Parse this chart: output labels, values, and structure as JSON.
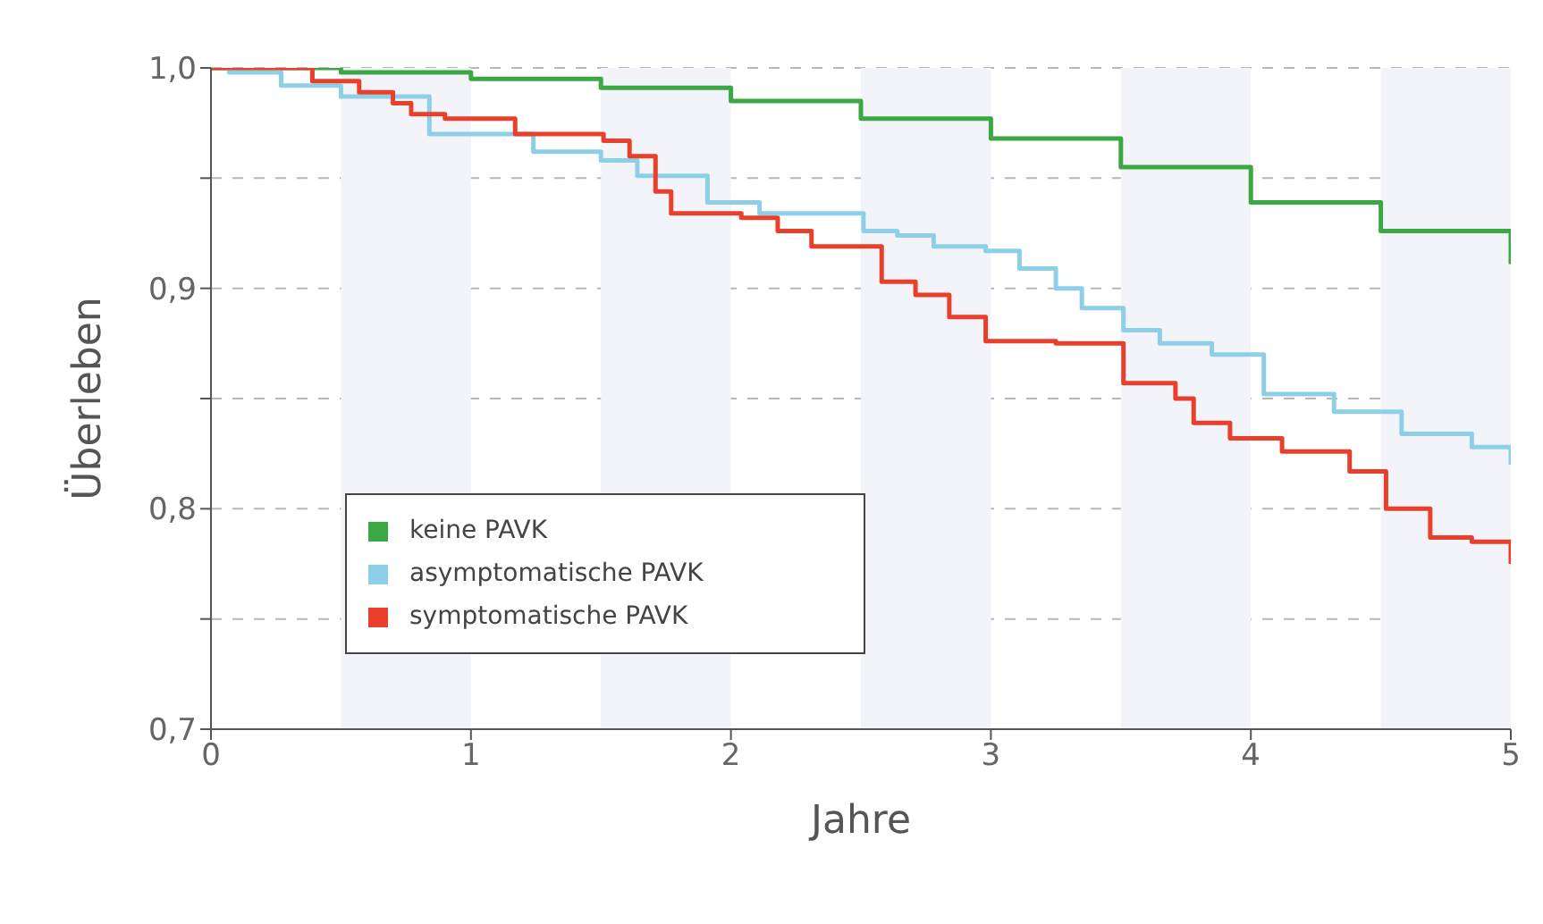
{
  "chart_data": {
    "type": "step",
    "xlabel": "Jahre",
    "ylabel": "Überleben",
    "xlim": [
      0,
      5
    ],
    "ylim": [
      0.7,
      1.0
    ],
    "xticks": [
      0,
      1,
      2,
      3,
      4,
      5
    ],
    "yticks": [
      {
        "value": 0.7,
        "label": "0,7"
      },
      {
        "value": 0.75,
        "label": null
      },
      {
        "value": 0.8,
        "label": "0,8"
      },
      {
        "value": 0.85,
        "label": null
      },
      {
        "value": 0.9,
        "label": "0,9"
      },
      {
        "value": 0.95,
        "label": null
      },
      {
        "value": 1.0,
        "label": "1,0"
      }
    ],
    "grid": "y",
    "legend": "bottom left",
    "line_style": "solid",
    "marker": "none",
    "bands": [
      {
        "axis": "x",
        "from": 0.5,
        "to": 1,
        "color": "#f2f4fa"
      },
      {
        "axis": "x",
        "from": 1.5,
        "to": 2,
        "color": "#f2f4fa"
      },
      {
        "axis": "x",
        "from": 2.5,
        "to": 3,
        "color": "#f2f4fa"
      },
      {
        "axis": "x",
        "from": 3.5,
        "to": 4,
        "color": "#f2f4fa"
      },
      {
        "axis": "x",
        "from": 4.5,
        "to": 5,
        "color": "#f2f4fa"
      }
    ],
    "series": [
      {
        "name": "keine PAVK",
        "color": "#3aa843",
        "x": [
          0,
          0.5,
          1,
          1.5,
          2,
          2.5,
          3,
          3.5,
          4,
          4.5,
          5
        ],
        "values": [
          1.0,
          0.998,
          0.995,
          0.991,
          0.985,
          0.977,
          0.968,
          0.955,
          0.939,
          0.926,
          0.911
        ]
      },
      {
        "name": "asymptomatische PAVK",
        "color": "#8ecfe8",
        "x": [
          0,
          0.07,
          0.27,
          0.5,
          0.84,
          1.24,
          1.5,
          1.64,
          1.81,
          1.91,
          2.11,
          2.44,
          2.51,
          2.64,
          2.78,
          2.98,
          3.11,
          3.25,
          3.35,
          3.51,
          3.65,
          3.85,
          4.05,
          4.32,
          4.58,
          4.85,
          5
        ],
        "values": [
          1.0,
          0.998,
          0.992,
          0.987,
          0.97,
          0.962,
          0.958,
          0.951,
          0.951,
          0.939,
          0.934,
          0.934,
          0.926,
          0.924,
          0.919,
          0.917,
          0.909,
          0.9,
          0.891,
          0.881,
          0.875,
          0.87,
          0.852,
          0.844,
          0.834,
          0.828,
          0.82
        ]
      },
      {
        "name": "symptomatische PAVK",
        "color": "#e8402a",
        "x": [
          0,
          0.39,
          0.57,
          0.7,
          0.77,
          0.9,
          1.17,
          1.51,
          1.61,
          1.71,
          1.77,
          2.04,
          2.18,
          2.31,
          2.58,
          2.71,
          2.84,
          2.98,
          3.25,
          3.51,
          3.71,
          3.78,
          3.92,
          4.12,
          4.38,
          4.52,
          4.69,
          4.85,
          5
        ],
        "values": [
          1.0,
          0.994,
          0.989,
          0.984,
          0.979,
          0.977,
          0.97,
          0.967,
          0.96,
          0.944,
          0.934,
          0.932,
          0.926,
          0.919,
          0.903,
          0.897,
          0.887,
          0.876,
          0.875,
          0.857,
          0.85,
          0.839,
          0.832,
          0.826,
          0.817,
          0.8,
          0.787,
          0.785,
          0.775
        ]
      }
    ]
  }
}
